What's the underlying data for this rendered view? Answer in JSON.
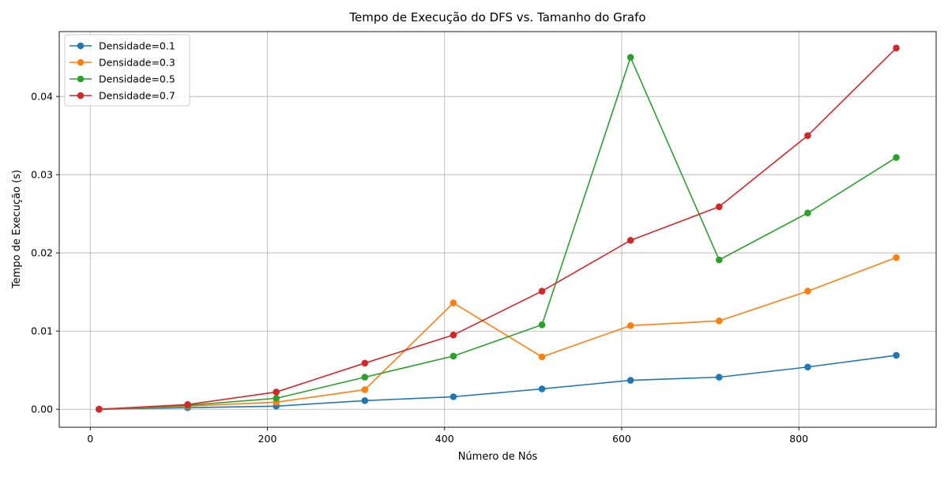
{
  "chart_data": {
    "type": "line",
    "title": "Tempo de Execução do DFS vs. Tamanho do Grafo",
    "xlabel": "Número de Nós",
    "ylabel": "Tempo de Execução (s)",
    "xlim": [
      -35,
      955
    ],
    "ylim": [
      -0.0023,
      0.0483
    ],
    "x_ticks": [
      0,
      200,
      400,
      600,
      800
    ],
    "x_tick_labels": [
      "0",
      "200",
      "400",
      "600",
      "800"
    ],
    "y_ticks": [
      0.0,
      0.01,
      0.02,
      0.03,
      0.04
    ],
    "y_tick_labels": [
      "0.00",
      "0.01",
      "0.02",
      "0.03",
      "0.04"
    ],
    "grid": true,
    "legend_position": "top-left",
    "x": [
      10,
      110,
      210,
      310,
      410,
      510,
      610,
      710,
      810,
      910
    ],
    "series": [
      {
        "name": "Densidade=0.1",
        "color": "#1f77b4",
        "values": [
          0.0,
          0.0002,
          0.0004,
          0.0011,
          0.0016,
          0.0026,
          0.0037,
          0.0041,
          0.0054,
          0.0069
        ]
      },
      {
        "name": "Densidade=0.3",
        "color": "#ff7f0e",
        "values": [
          0.0,
          0.0004,
          0.0009,
          0.0025,
          0.0136,
          0.0067,
          0.0107,
          0.0113,
          0.0151,
          0.0194
        ]
      },
      {
        "name": "Densidade=0.5",
        "color": "#2ca02c",
        "values": [
          0.0,
          0.0005,
          0.0014,
          0.0041,
          0.0068,
          0.0108,
          0.045,
          0.0191,
          0.0251,
          0.0322
        ]
      },
      {
        "name": "Densidade=0.7",
        "color": "#d62728",
        "values": [
          0.0,
          0.0006,
          0.0022,
          0.0059,
          0.0095,
          0.0151,
          0.0216,
          0.0259,
          0.035,
          0.0462
        ]
      }
    ]
  }
}
